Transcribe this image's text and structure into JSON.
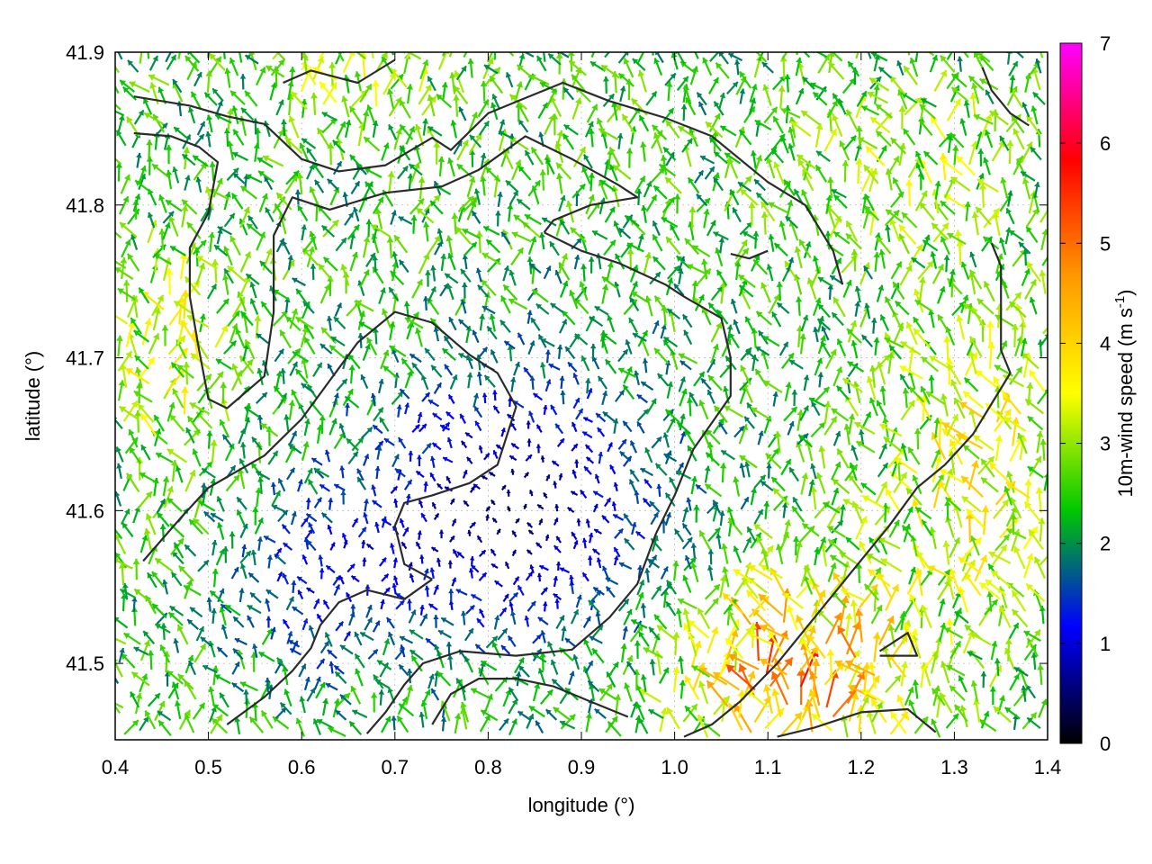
{
  "chart_data": {
    "type": "vector-field",
    "xlabel": "longitude (°)",
    "ylabel": "latitude (°)",
    "xlim": [
      0.4,
      1.4
    ],
    "ylim": [
      41.45,
      41.9
    ],
    "x_ticks": [
      "0.4",
      "0.5",
      "0.6",
      "0.7",
      "0.8",
      "0.9",
      "1.0",
      "1.1",
      "1.2",
      "1.3",
      "1.4"
    ],
    "x_tick_values": [
      0.4,
      0.5,
      0.6,
      0.7,
      0.8,
      0.9,
      1.0,
      1.1,
      1.2,
      1.3,
      1.4
    ],
    "y_ticks": [
      "41.5",
      "41.6",
      "41.7",
      "41.8",
      "41.9"
    ],
    "y_tick_values": [
      41.5,
      41.6,
      41.7,
      41.8,
      41.9
    ],
    "grid": true,
    "colorbar": {
      "label_main": "10m-wind speed (m s",
      "label_sup": "-1",
      "label_end": ")",
      "range": [
        0,
        7
      ],
      "ticks": [
        "0",
        "1",
        "2",
        "3",
        "4",
        "5",
        "6",
        "7"
      ],
      "tick_values": [
        0,
        1,
        2,
        3,
        4,
        5,
        6,
        7
      ],
      "palette": [
        "#000000",
        "#0000ff",
        "#00c800",
        "#ffff00",
        "#ff9900",
        "#ff0000",
        "#ff00ff"
      ]
    },
    "contours": [
      [
        [
          0.42,
          41.871
        ],
        [
          0.48,
          41.865
        ],
        [
          0.52,
          41.858
        ],
        [
          0.56,
          41.853
        ],
        [
          0.6,
          41.83
        ],
        [
          0.64,
          41.822
        ],
        [
          0.69,
          41.826
        ],
        [
          0.74,
          41.844
        ],
        [
          0.76,
          41.836
        ],
        [
          0.8,
          41.86
        ],
        [
          0.84,
          41.87
        ],
        [
          0.88,
          41.88
        ],
        [
          0.93,
          41.868
        ],
        [
          0.99,
          41.857
        ],
        [
          1.04,
          41.845
        ],
        [
          1.1,
          41.815
        ],
        [
          1.14,
          41.8
        ],
        [
          1.17,
          41.77
        ],
        [
          1.18,
          41.748
        ]
      ],
      [
        [
          0.42,
          41.847
        ],
        [
          0.46,
          41.845
        ],
        [
          0.49,
          41.838
        ],
        [
          0.51,
          41.828
        ],
        [
          0.5,
          41.795
        ],
        [
          0.48,
          41.772
        ],
        [
          0.48,
          41.74
        ],
        [
          0.49,
          41.705
        ],
        [
          0.5,
          41.673
        ],
        [
          0.52,
          41.667
        ],
        [
          0.56,
          41.688
        ],
        [
          0.57,
          41.73
        ],
        [
          0.57,
          41.78
        ],
        [
          0.59,
          41.805
        ],
        [
          0.63,
          41.797
        ],
        [
          0.69,
          41.808
        ],
        [
          0.75,
          41.812
        ],
        [
          0.79,
          41.823
        ],
        [
          0.84,
          41.845
        ],
        [
          0.89,
          41.83
        ],
        [
          0.94,
          41.813
        ],
        [
          0.96,
          41.805
        ],
        [
          0.91,
          41.8
        ],
        [
          0.87,
          41.79
        ],
        [
          0.86,
          41.782
        ]
      ],
      [
        [
          0.86,
          41.782
        ],
        [
          0.9,
          41.77
        ],
        [
          0.94,
          41.762
        ],
        [
          0.99,
          41.748
        ],
        [
          1.01,
          41.74
        ],
        [
          1.05,
          41.726
        ],
        [
          1.06,
          41.7
        ],
        [
          1.06,
          41.675
        ],
        [
          1.02,
          41.64
        ],
        [
          1.0,
          41.61
        ],
        [
          0.98,
          41.585
        ],
        [
          0.96,
          41.552
        ],
        [
          0.93,
          41.53
        ],
        [
          0.89,
          41.509
        ],
        [
          0.83,
          41.505
        ],
        [
          0.77,
          41.508
        ],
        [
          0.73,
          41.5
        ],
        [
          0.71,
          41.486
        ],
        [
          0.69,
          41.468
        ],
        [
          0.67,
          41.454
        ]
      ],
      [
        [
          0.43,
          41.567
        ],
        [
          0.47,
          41.595
        ],
        [
          0.5,
          41.615
        ],
        [
          0.52,
          41.622
        ],
        [
          0.56,
          41.636
        ],
        [
          0.6,
          41.66
        ],
        [
          0.63,
          41.685
        ],
        [
          0.66,
          41.71
        ],
        [
          0.7,
          41.73
        ],
        [
          0.74,
          41.723
        ],
        [
          0.78,
          41.702
        ],
        [
          0.81,
          41.69
        ],
        [
          0.83,
          41.668
        ],
        [
          0.81,
          41.63
        ],
        [
          0.78,
          41.618
        ],
        [
          0.74,
          41.61
        ],
        [
          0.71,
          41.605
        ],
        [
          0.7,
          41.59
        ],
        [
          0.71,
          41.565
        ],
        [
          0.74,
          41.555
        ]
      ],
      [
        [
          0.74,
          41.555
        ],
        [
          0.71,
          41.542
        ],
        [
          0.67,
          41.548
        ],
        [
          0.64,
          41.54
        ],
        [
          0.62,
          41.525
        ],
        [
          0.61,
          41.51
        ],
        [
          0.59,
          41.495
        ],
        [
          0.56,
          41.478
        ],
        [
          0.52,
          41.46
        ]
      ],
      [
        [
          1.38,
          41.852
        ],
        [
          1.36,
          41.86
        ],
        [
          1.34,
          41.875
        ],
        [
          1.33,
          41.89
        ]
      ],
      [
        [
          1.34,
          41.775
        ],
        [
          1.35,
          41.76
        ],
        [
          1.35,
          41.735
        ],
        [
          1.35,
          41.705
        ],
        [
          1.36,
          41.69
        ],
        [
          1.34,
          41.67
        ],
        [
          1.32,
          41.65
        ],
        [
          1.29,
          41.63
        ],
        [
          1.26,
          41.615
        ],
        [
          1.23,
          41.59
        ],
        [
          1.19,
          41.56
        ],
        [
          1.15,
          41.53
        ],
        [
          1.11,
          41.5
        ],
        [
          1.07,
          41.475
        ],
        [
          1.04,
          41.46
        ],
        [
          1.01,
          41.452
        ]
      ],
      [
        [
          1.22,
          41.508
        ],
        [
          1.25,
          41.52
        ],
        [
          1.26,
          41.505
        ],
        [
          1.22,
          41.505
        ]
      ],
      [
        [
          1.11,
          41.452
        ],
        [
          1.15,
          41.458
        ],
        [
          1.2,
          41.468
        ],
        [
          1.25,
          41.47
        ],
        [
          1.28,
          41.455
        ]
      ],
      [
        [
          0.74,
          41.46
        ],
        [
          0.76,
          41.48
        ],
        [
          0.79,
          41.49
        ],
        [
          0.83,
          41.49
        ],
        [
          0.87,
          41.485
        ],
        [
          0.91,
          41.475
        ],
        [
          0.95,
          41.465
        ]
      ],
      [
        [
          0.58,
          41.88
        ],
        [
          0.61,
          41.888
        ],
        [
          0.66,
          41.88
        ],
        [
          0.7,
          41.895
        ]
      ],
      [
        [
          1.06,
          41.768
        ],
        [
          1.08,
          41.765
        ],
        [
          1.1,
          41.77
        ]
      ]
    ]
  }
}
